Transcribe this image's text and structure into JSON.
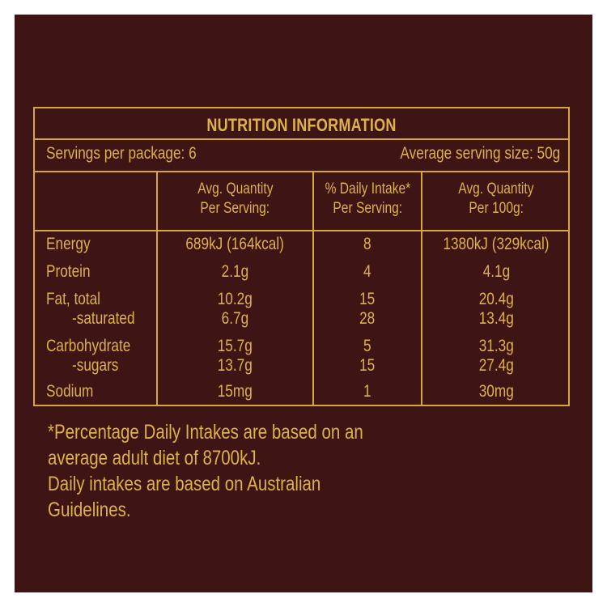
{
  "panel": {
    "title": "NUTRITION INFORMATION",
    "servings_per_package": "Servings per package: 6",
    "average_serving_size": "Average serving size: 50g",
    "headers": {
      "per_serving": [
        "Avg. Quantity",
        "Per Serving:"
      ],
      "daily_intake": [
        "% Daily Intake*",
        "Per Serving:"
      ],
      "per_100g": [
        "Avg. Quantity",
        "Per 100g:"
      ]
    },
    "rows": [
      {
        "name": "Energy",
        "per_serving": "689kJ (164kcal)",
        "daily_intake": "8",
        "per_100g": "1380kJ (329kcal)"
      },
      {
        "name": "Protein",
        "per_serving": "2.1g",
        "daily_intake": "4",
        "per_100g": "4.1g"
      },
      {
        "name": "Fat, total",
        "per_serving": "10.2g",
        "daily_intake": "15",
        "per_100g": "20.4g"
      },
      {
        "name": "-saturated",
        "per_serving": "6.7g",
        "daily_intake": "28",
        "per_100g": "13.4g"
      },
      {
        "name": "Carbohydrate",
        "per_serving": "15.7g",
        "daily_intake": "5",
        "per_100g": "31.3g"
      },
      {
        "name": "-sugars",
        "per_serving": "13.7g",
        "daily_intake": "15",
        "per_100g": "27.4g"
      },
      {
        "name": "Sodium",
        "per_serving": "15mg",
        "daily_intake": "1",
        "per_100g": "30mg"
      }
    ],
    "footnote": [
      "*Percentage Daily Intakes are based on an",
      "average adult diet of 8700kJ.",
      "Daily intakes are based on Australian",
      "Guidelines."
    ],
    "colors": {
      "background": "#3f1414",
      "text": "#dcb24b",
      "frame": "#ffffff"
    }
  }
}
